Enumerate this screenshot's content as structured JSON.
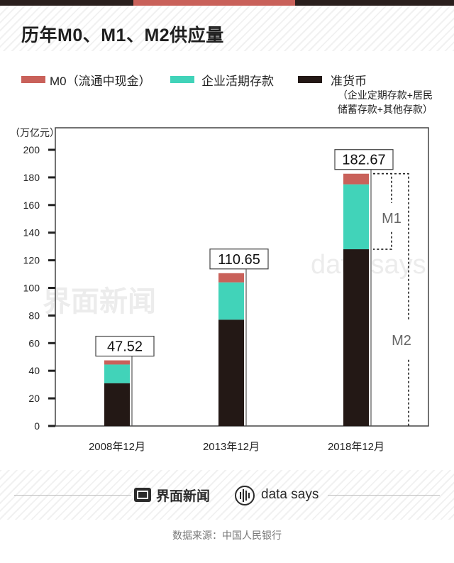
{
  "title": "历年M0、M1、M2供应量",
  "legend": [
    {
      "label": "M0（流通中现金）",
      "color": "#c9615a"
    },
    {
      "label": "企业活期存款",
      "color": "#41d3b9"
    },
    {
      "label": "准货币",
      "color": "#231815"
    }
  ],
  "legend_note": [
    "（企业定期存款+居民",
    "储蓄存款+其他存款）"
  ],
  "chart_data": {
    "type": "bar",
    "stacked": true,
    "unit_label": "（万亿元）",
    "categories": [
      "2008年12月",
      "2013年12月",
      "2018年12月"
    ],
    "series": [
      {
        "name": "准货币",
        "values": [
          31,
          77,
          128
        ]
      },
      {
        "name": "企业活期存款",
        "values": [
          13.5,
          27,
          47
        ]
      },
      {
        "name": "M0（流通中现金）",
        "values": [
          3.02,
          6.65,
          7.67
        ]
      }
    ],
    "totals": [
      "47.52",
      "110.65",
      "182.67"
    ],
    "ylim": [
      0,
      200
    ],
    "yticks": [
      0,
      20,
      40,
      60,
      80,
      100,
      120,
      140,
      160,
      180,
      200
    ],
    "bracket_labels": [
      "M1",
      "M2"
    ]
  },
  "watermark": {
    "cn": "界面新闻",
    "en": "data says"
  },
  "footer": {
    "brand_cn": "界面新闻",
    "brand_en": "data says",
    "source": "数据来源：中国人民银行"
  }
}
